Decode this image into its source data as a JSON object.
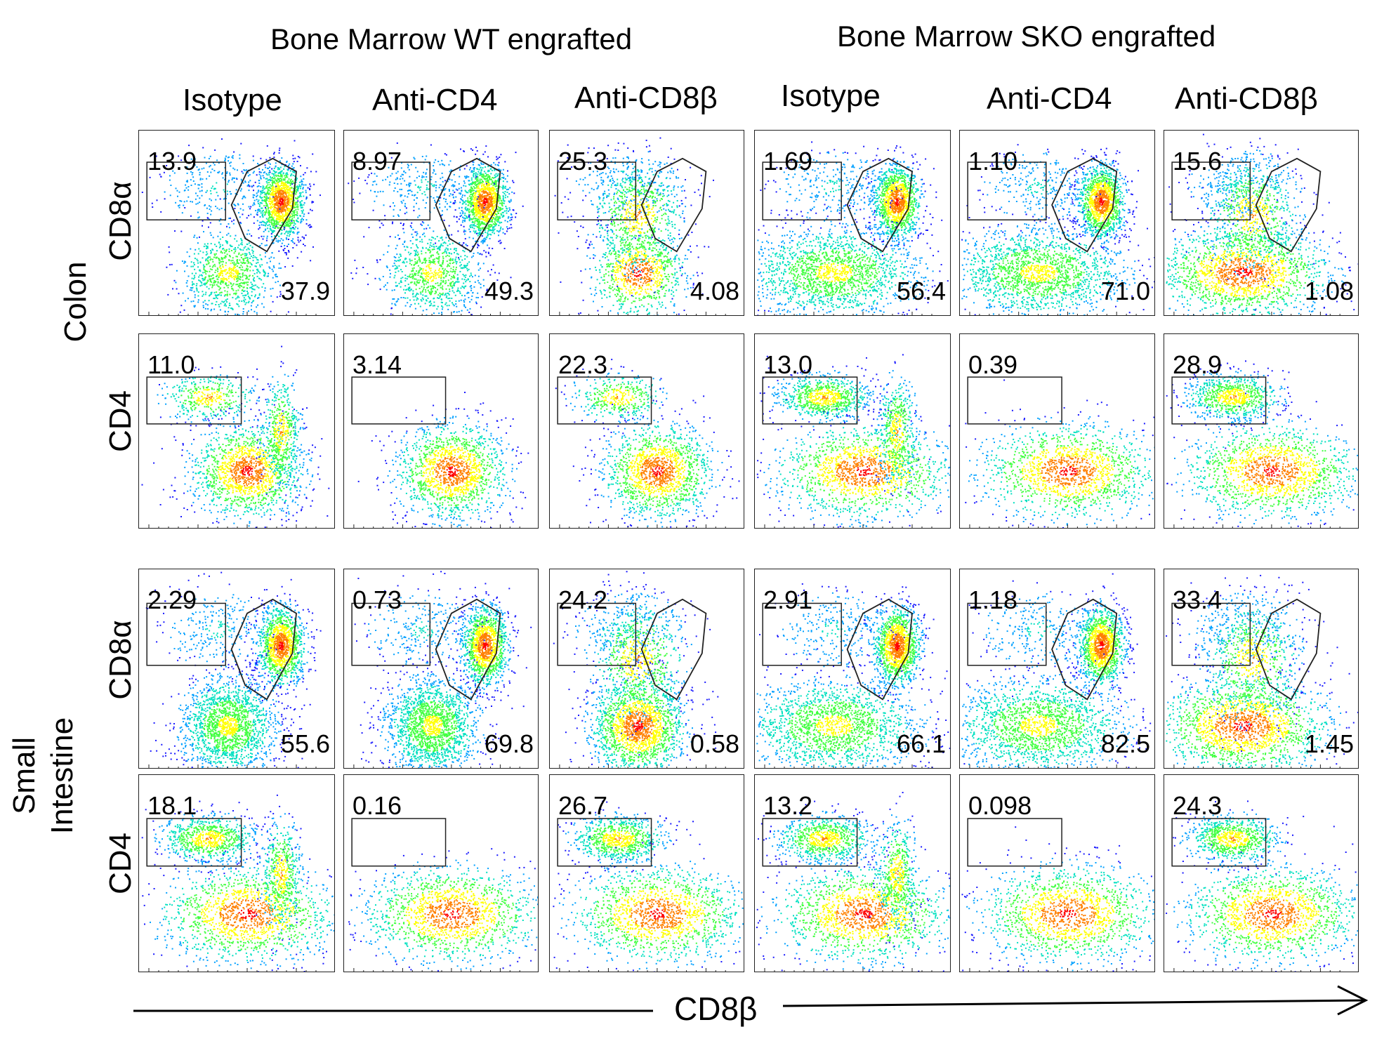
{
  "groups": [
    {
      "title": "Bone Marrow WT engrafted"
    },
    {
      "title": "Bone Marrow SKO engrafted"
    }
  ],
  "columns": [
    "Isotype",
    "Anti-CD4",
    "Anti-CD8β",
    "Isotype",
    "Anti-CD4",
    "Anti-CD8β"
  ],
  "tissues": [
    {
      "line1": "Colon",
      "line2": ""
    },
    {
      "line1": "Small",
      "line2": "Intestine"
    }
  ],
  "row_markers": [
    "CD8α",
    "CD4",
    "CD8α",
    "CD4"
  ],
  "x_axis": {
    "label": "CD8β"
  },
  "panels": [
    [
      {
        "tl": "13.9",
        "br": "37.9"
      },
      {
        "tl": "8.97",
        "br": "49.3"
      },
      {
        "tl": "25.3",
        "br": "4.08"
      },
      {
        "tl": "1.69",
        "br": "56.4"
      },
      {
        "tl": "1.10",
        "br": "71.0"
      },
      {
        "tl": "15.6",
        "br": "1.08"
      }
    ],
    [
      {
        "tl": "11.0"
      },
      {
        "tl": "3.14"
      },
      {
        "tl": "22.3"
      },
      {
        "tl": "13.0"
      },
      {
        "tl": "0.39"
      },
      {
        "tl": "28.9"
      }
    ],
    [
      {
        "tl": "2.29",
        "br": "55.6"
      },
      {
        "tl": "0.73",
        "br": "69.8"
      },
      {
        "tl": "24.2",
        "br": "0.58"
      },
      {
        "tl": "2.91",
        "br": "66.1"
      },
      {
        "tl": "1.18",
        "br": "82.5"
      },
      {
        "tl": "33.4",
        "br": "1.45"
      }
    ],
    [
      {
        "tl": "18.1"
      },
      {
        "tl": "0.16"
      },
      {
        "tl": "26.7"
      },
      {
        "tl": "13.2"
      },
      {
        "tl": "0.098"
      },
      {
        "tl": "24.3"
      }
    ]
  ],
  "colors": {
    "density": [
      "#1a1aff",
      "#00a0ff",
      "#00e0c0",
      "#40ff40",
      "#ffff00",
      "#ff8000",
      "#ff0000"
    ],
    "gate": "#222222"
  }
}
